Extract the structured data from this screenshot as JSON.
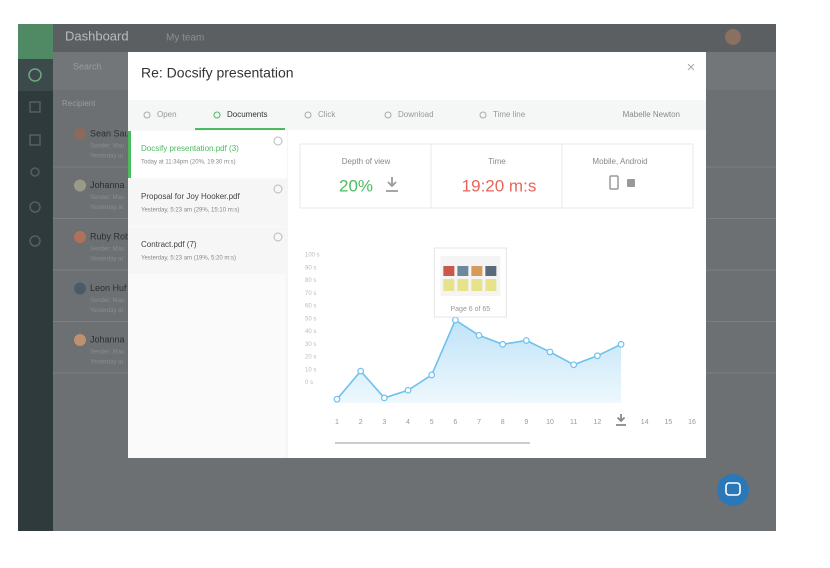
{
  "app": {
    "title": "Dashboard",
    "team": "My team",
    "search": "Search",
    "column": "Recipient",
    "recipients": [
      {
        "name": "Sean Sau",
        "sender": "Sender: Mau",
        "time": "Yesterday at"
      },
      {
        "name": "Johanna",
        "sender": "Sender: Mau",
        "time": "Yesterday at"
      },
      {
        "name": "Ruby Rob",
        "sender": "Sender: Mau",
        "time": "Yesterday at"
      },
      {
        "name": "Leon Huf",
        "sender": "Sender: Mau",
        "time": "Yesterday at"
      },
      {
        "name": "Johanna",
        "sender": "Sender: Mau",
        "time": "Yesterday at"
      }
    ]
  },
  "modal": {
    "title": "Re: Docsify presentation",
    "tabs": [
      "Open",
      "Documents",
      "Click",
      "Download",
      "Time line"
    ],
    "user": "Mabelle Newton",
    "documents": [
      {
        "name": "Docsify presentation.pdf (3)",
        "detail": "Today at 11:34pm (20%, 19:30 m:s)"
      },
      {
        "name": "Proposal for Joy Hooker.pdf",
        "detail": "Yesterday, 5:23 am (29%, 15:10 m:s)"
      },
      {
        "name": "Contract.pdf (7)",
        "detail": "Yesterday, 5:23 am (19%, 5:20 m:s)"
      }
    ],
    "stats": [
      {
        "label": "Depth of view",
        "value": "20%"
      },
      {
        "label": "Time",
        "value": "19:20 m:s"
      },
      {
        "label": "Mobile, Android"
      }
    ]
  },
  "chart_data": {
    "type": "area",
    "annotation": "Page 6 of 65",
    "categories": [
      "1",
      "2",
      "3",
      "4",
      "5",
      "6",
      "7",
      "8",
      "9",
      "10",
      "11",
      "12",
      null,
      "14",
      "15",
      "16"
    ],
    "series": [
      {
        "color": "#6ec1ee",
        "values": [
          -13,
          9,
          -12,
          -6,
          6,
          49,
          37,
          30,
          33,
          24,
          14,
          21,
          30,
          null,
          null,
          null
        ]
      }
    ],
    "ylim": [
      -16,
      100
    ],
    "yticks": [
      {
        "value": 0,
        "label": "0 s"
      },
      {
        "value": 10,
        "label": "10 s"
      },
      {
        "value": 20,
        "label": "20 s"
      },
      {
        "value": 30,
        "label": "30 s"
      },
      {
        "value": 40,
        "label": "40 s"
      },
      {
        "value": 50,
        "label": "50 s"
      },
      {
        "value": 60,
        "label": "60 s"
      },
      {
        "value": 70,
        "label": "70 s"
      },
      {
        "value": 80,
        "label": "80 s"
      },
      {
        "value": 90,
        "label": "90 s"
      },
      {
        "value": 100,
        "label": "100 s"
      }
    ]
  }
}
